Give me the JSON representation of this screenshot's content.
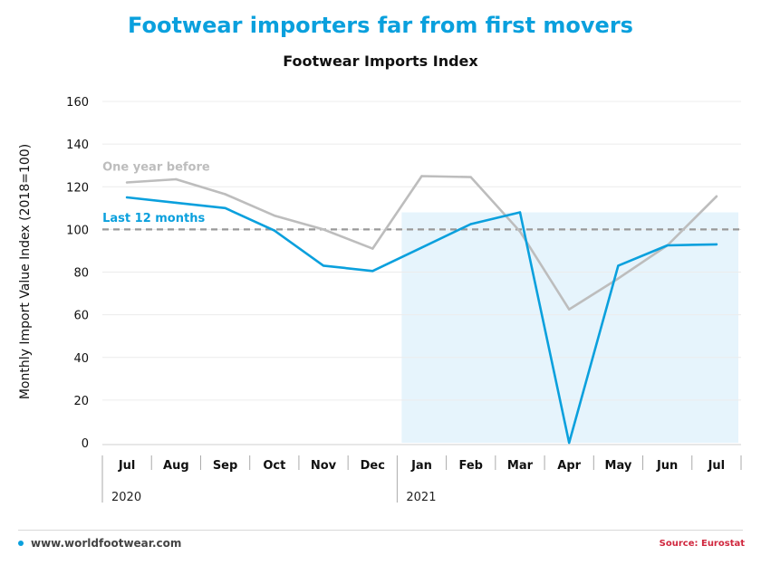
{
  "title": "Footwear importers far from first movers",
  "subtitle": "Footwear Imports Index",
  "footer": {
    "website": "www.worldfootwear.com",
    "source": "Source: Eurostat"
  },
  "colors": {
    "title": "#0aa0dd",
    "last12": "#0aa0dd",
    "yearBefore": "#bdbdbd",
    "reference": "#999999",
    "shade": "#e6f4fc",
    "source": "#d0273e"
  },
  "chart_data": {
    "type": "line",
    "ylabel": "Monthly Import Value Index  (2018=100)",
    "xlabel": "",
    "ylim": [
      0,
      160
    ],
    "yticks": [
      0,
      20,
      40,
      60,
      80,
      100,
      120,
      140,
      160
    ],
    "grid": true,
    "categories": [
      "Jul",
      "Aug",
      "Sep",
      "Oct",
      "Nov",
      "Dec",
      "Jan",
      "Feb",
      "Mar",
      "Apr",
      "May",
      "Jun",
      "Jul"
    ],
    "year_groups": [
      {
        "label": "2020",
        "start_index": 0,
        "end_index": 5
      },
      {
        "label": "2021",
        "start_index": 6,
        "end_index": 12
      }
    ],
    "reference_line": 100,
    "shaded_region": {
      "start_index": 6,
      "end_index": 12,
      "top_value": 108
    },
    "series": [
      {
        "name": "One year before",
        "values": [
          122,
          123.5,
          116.5,
          106.5,
          100,
          91,
          125,
          124.5,
          99,
          62.5,
          77,
          92.5,
          115.5
        ]
      },
      {
        "name": "Last 12 months",
        "values": [
          115,
          112.5,
          110,
          99.5,
          83,
          80.5,
          91.5,
          102.5,
          108,
          0,
          83,
          92.5,
          93
        ]
      }
    ]
  }
}
